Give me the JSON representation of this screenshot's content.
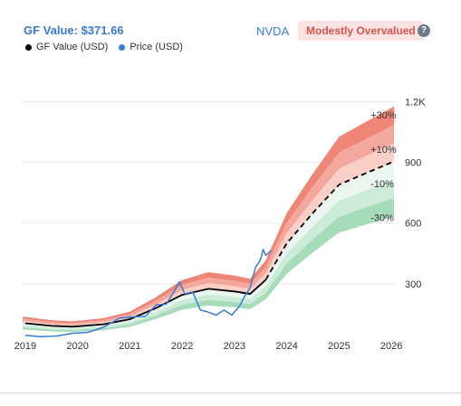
{
  "header": {
    "gf_value_label": "GF Value: $371.66",
    "ticker": "NVDA",
    "valuation_badge": "Modestly Overvalued",
    "help_symbol": "?"
  },
  "colors": {
    "gf_value_line": "#000000",
    "price_line": "#3a7bd5",
    "overvalued_band": "#ee8577",
    "undervalued_band": "#a7dcbb",
    "badge_text": "#d9534f"
  },
  "chart_data": {
    "type": "line",
    "x_axis": {
      "ticks": [
        "2019",
        "2020",
        "2021",
        "2022",
        "2023",
        "2024",
        "2025",
        "2026"
      ],
      "range": [
        2018.95,
        2026.05
      ]
    },
    "y_axis": {
      "range": [
        40,
        1390
      ],
      "ticks": [
        300,
        600,
        900,
        1200
      ],
      "tick_labels": [
        "300",
        "600",
        "900",
        "1.2K"
      ],
      "position": "right"
    },
    "grid": true,
    "legend": {
      "position": "top-left",
      "entries": [
        "GF Value (USD)",
        "Price (USD)"
      ]
    },
    "band_labels": [
      "+30%",
      "+10%",
      "-10%",
      "-30%"
    ],
    "band_multipliers": [
      1.3,
      1.2,
      1.1,
      1.0,
      0.9,
      0.8,
      0.7
    ],
    "series": [
      {
        "name": "GF Value (USD)",
        "style": "solid-then-dashed",
        "projection_start": 2023.6,
        "x": [
          2019.0,
          2019.5,
          2019.9,
          2020.5,
          2021.0,
          2021.5,
          2022.0,
          2022.5,
          2023.0,
          2023.3,
          2023.6,
          2024.0,
          2024.5,
          2025.0,
          2025.5,
          2026.05
        ],
        "y": [
          105,
          92,
          88,
          100,
          125,
          180,
          245,
          275,
          262,
          250,
          320,
          500,
          650,
          790,
          845,
          905
        ]
      },
      {
        "name": "Price (USD)",
        "x": [
          2019.0,
          2019.3,
          2019.6,
          2019.9,
          2020.2,
          2020.5,
          2020.8,
          2021.0,
          2021.3,
          2021.5,
          2021.7,
          2021.85,
          2021.95,
          2022.05,
          2022.2,
          2022.35,
          2022.5,
          2022.65,
          2022.8,
          2022.95,
          2023.1,
          2023.2,
          2023.3,
          2023.4,
          2023.5,
          2023.55,
          2023.6,
          2023.7
        ],
        "y": [
          45,
          38,
          42,
          55,
          60,
          85,
          130,
          135,
          140,
          195,
          200,
          265,
          310,
          250,
          260,
          170,
          160,
          145,
          170,
          145,
          190,
          240,
          280,
          380,
          420,
          470,
          440,
          465
        ]
      }
    ]
  }
}
